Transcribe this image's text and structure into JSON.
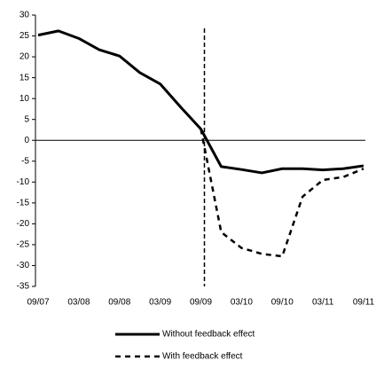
{
  "chart_data": {
    "type": "line",
    "categories": [
      "09/07",
      null,
      "03/08",
      null,
      "09/08",
      null,
      "03/09",
      null,
      "09/09",
      null,
      "03/10",
      null,
      "09/10",
      null,
      "03/11",
      null,
      "09/11"
    ],
    "series": [
      {
        "name": "Without feedback effect",
        "color": "#000000",
        "dashed": false,
        "values": [
          25.2,
          26.2,
          24.4,
          21.7,
          20.2,
          16.2,
          13.5,
          8,
          2.7,
          -6.3,
          -7,
          -7.8,
          -6.8,
          -6.8,
          -7.1,
          -6.8,
          -6.1
        ]
      },
      {
        "name": "With feedback effect",
        "color": "#000000",
        "dashed": true,
        "values": [
          null,
          null,
          null,
          null,
          null,
          null,
          null,
          null,
          2.7,
          -22,
          -25.8,
          -27.2,
          -27.8,
          -13.5,
          -9.5,
          -8.8,
          -6.8
        ]
      }
    ],
    "ylim": [
      -35,
      30
    ],
    "yticks": [
      -35,
      -30,
      -25,
      -20,
      -15,
      -10,
      -5,
      0,
      5,
      10,
      15,
      20,
      25,
      30
    ],
    "vertical_line_at": "09/09",
    "grid": false,
    "legend": "bottom"
  }
}
